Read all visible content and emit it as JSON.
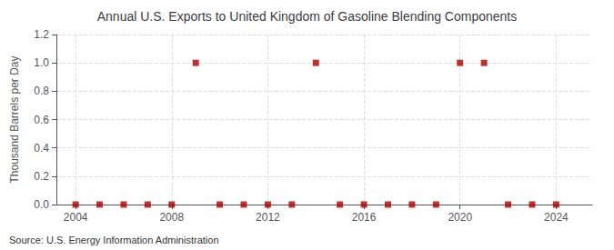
{
  "chart_data": {
    "type": "scatter",
    "title": "Annual U.S. Exports to United Kingdom of Gasoline Blending Components",
    "ylabel": "Thousand Barrels per Day",
    "annotation": "Source: U.S. Energy Information Administration",
    "x": [
      2004,
      2005,
      2006,
      2007,
      2008,
      2009,
      2010,
      2011,
      2012,
      2013,
      2014,
      2015,
      2016,
      2017,
      2018,
      2019,
      2020,
      2021,
      2022,
      2023,
      2024
    ],
    "values": [
      0,
      0,
      0,
      0,
      0,
      1,
      0,
      0,
      0,
      0,
      1,
      0,
      0,
      0,
      0,
      0,
      1,
      1,
      0,
      0,
      0
    ],
    "color": "#aa0000",
    "marker": "square",
    "xlim": [
      2003.2,
      2025.5
    ],
    "xticks": [
      2004,
      2008,
      2012,
      2016,
      2020,
      2024
    ],
    "ylim": [
      0.0,
      1.2
    ],
    "yticks": [
      {
        "value": 0,
        "label": "0.0"
      },
      0.2,
      0.4,
      0.6,
      0.8,
      {
        "value": 1,
        "label": "1.0"
      },
      1.2
    ],
    "grid": true
  }
}
